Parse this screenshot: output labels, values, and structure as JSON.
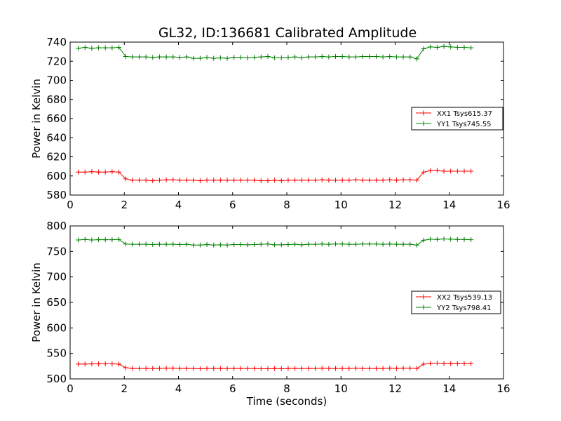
{
  "figure": {
    "title": "GL32, ID:136681 Calibrated Amplitude"
  },
  "chart_data": [
    {
      "type": "line",
      "title": "GL32, ID:136681 Calibrated Amplitude",
      "xlabel": "",
      "ylabel": "Power in Kelvin",
      "xlim": [
        0,
        16
      ],
      "ylim": [
        580,
        740
      ],
      "xticks": [
        "0",
        "2",
        "4",
        "6",
        "8",
        "10",
        "12",
        "14",
        "16"
      ],
      "yticks": [
        "580",
        "600",
        "620",
        "640",
        "660",
        "680",
        "700",
        "720",
        "740"
      ],
      "grid": false,
      "legend": "center-right",
      "x": [
        0.3,
        0.55,
        0.8,
        1.05,
        1.3,
        1.55,
        1.8,
        2.05,
        2.3,
        2.55,
        2.8,
        3.05,
        3.3,
        3.55,
        3.8,
        4.05,
        4.3,
        4.55,
        4.8,
        5.05,
        5.3,
        5.55,
        5.8,
        6.05,
        6.3,
        6.55,
        6.8,
        7.05,
        7.3,
        7.55,
        7.8,
        8.05,
        8.3,
        8.55,
        8.8,
        9.05,
        9.3,
        9.55,
        9.8,
        10.05,
        10.3,
        10.55,
        10.8,
        11.05,
        11.3,
        11.55,
        11.8,
        12.05,
        12.3,
        12.55,
        12.8,
        13.05,
        13.3,
        13.55,
        13.8,
        14.05,
        14.3,
        14.55,
        14.8
      ],
      "series": [
        {
          "name": "XX1 Tsys615.37",
          "color": "#ff0000",
          "values": [
            604,
            604,
            604.5,
            604,
            604,
            604.5,
            604,
            597,
            595.5,
            595.5,
            595.5,
            595,
            595.5,
            596,
            596,
            595.5,
            595.5,
            595.5,
            595,
            595.5,
            595.5,
            595.5,
            595.5,
            595.5,
            595.5,
            595.5,
            595.5,
            595,
            595,
            595.5,
            595,
            595.5,
            595.5,
            595.5,
            595.5,
            595.5,
            596,
            595.5,
            595.5,
            595.5,
            595.5,
            596,
            595.5,
            595.5,
            595.5,
            595.5,
            596,
            595.5,
            596,
            596,
            595.5,
            604,
            605.5,
            606,
            605,
            605,
            605,
            605,
            605
          ]
        },
        {
          "name": "YY1 Tsys745.55",
          "color": "#008000",
          "values": [
            733.5,
            734.5,
            733.5,
            734,
            734,
            734,
            734.5,
            725,
            724.5,
            724.5,
            724.5,
            724,
            724.5,
            724.5,
            724.5,
            724,
            724.5,
            723,
            723,
            724,
            723,
            723.5,
            723,
            724,
            724,
            723.5,
            724,
            724.5,
            725,
            723.5,
            723.5,
            724,
            724.5,
            723.5,
            724.5,
            724.5,
            725,
            724.5,
            725,
            725,
            724.5,
            724.5,
            725,
            725,
            725,
            724.5,
            725,
            724.5,
            724.5,
            724.5,
            722.5,
            733,
            735,
            734.5,
            735.5,
            735,
            734.5,
            734.5,
            734
          ]
        }
      ]
    },
    {
      "type": "line",
      "title": "",
      "xlabel": "Time (seconds)",
      "ylabel": "Power in Kelvin",
      "xlim": [
        0,
        16
      ],
      "ylim": [
        500,
        800
      ],
      "xticks": [
        "0",
        "2",
        "4",
        "6",
        "8",
        "10",
        "12",
        "14",
        "16"
      ],
      "yticks": [
        "500",
        "550",
        "600",
        "650",
        "700",
        "750",
        "800"
      ],
      "grid": false,
      "legend": "center-right",
      "x": [
        0.3,
        0.55,
        0.8,
        1.05,
        1.3,
        1.55,
        1.8,
        2.05,
        2.3,
        2.55,
        2.8,
        3.05,
        3.3,
        3.55,
        3.8,
        4.05,
        4.3,
        4.55,
        4.8,
        5.05,
        5.3,
        5.55,
        5.8,
        6.05,
        6.3,
        6.55,
        6.8,
        7.05,
        7.3,
        7.55,
        7.8,
        8.05,
        8.3,
        8.55,
        8.8,
        9.05,
        9.3,
        9.55,
        9.8,
        10.05,
        10.3,
        10.55,
        10.8,
        11.05,
        11.3,
        11.55,
        11.8,
        12.05,
        12.3,
        12.55,
        12.8,
        13.05,
        13.3,
        13.55,
        13.8,
        14.05,
        14.3,
        14.55,
        14.8
      ],
      "series": [
        {
          "name": "XX2 Tsys539.13",
          "color": "#ff0000",
          "values": [
            529,
            529,
            529.5,
            529.5,
            529.5,
            529.5,
            529,
            522,
            520.5,
            520.5,
            520.5,
            520.5,
            520.5,
            521,
            521,
            520.5,
            520.5,
            520.5,
            520,
            520.5,
            520.5,
            520.5,
            520.5,
            520.5,
            520.5,
            520.5,
            520.5,
            520,
            520,
            520.5,
            520,
            520.5,
            520.5,
            520.5,
            520.5,
            520.5,
            521,
            520.5,
            520.5,
            520.5,
            520.5,
            521,
            520.5,
            520.5,
            520.5,
            520.5,
            521,
            520.5,
            521,
            521,
            520.5,
            529,
            530.5,
            531,
            530,
            530,
            530,
            530,
            530
          ]
        },
        {
          "name": "YY2 Tsys798.41",
          "color": "#008000",
          "values": [
            772.5,
            773.5,
            772.5,
            773,
            773,
            773,
            773.5,
            764.5,
            764,
            764,
            764,
            763.5,
            764,
            764,
            764,
            763.5,
            764,
            762.5,
            762.5,
            763.5,
            762.5,
            763,
            762.5,
            763.5,
            763.5,
            763,
            763.5,
            764,
            764.5,
            763,
            763,
            763.5,
            764,
            763,
            764,
            764,
            764.5,
            764,
            764.5,
            764.5,
            764,
            764,
            764.5,
            764.5,
            764.5,
            764,
            764.5,
            764,
            764,
            764,
            762.5,
            772,
            774,
            773.5,
            774.5,
            774,
            773.5,
            773.5,
            773
          ]
        }
      ]
    }
  ]
}
